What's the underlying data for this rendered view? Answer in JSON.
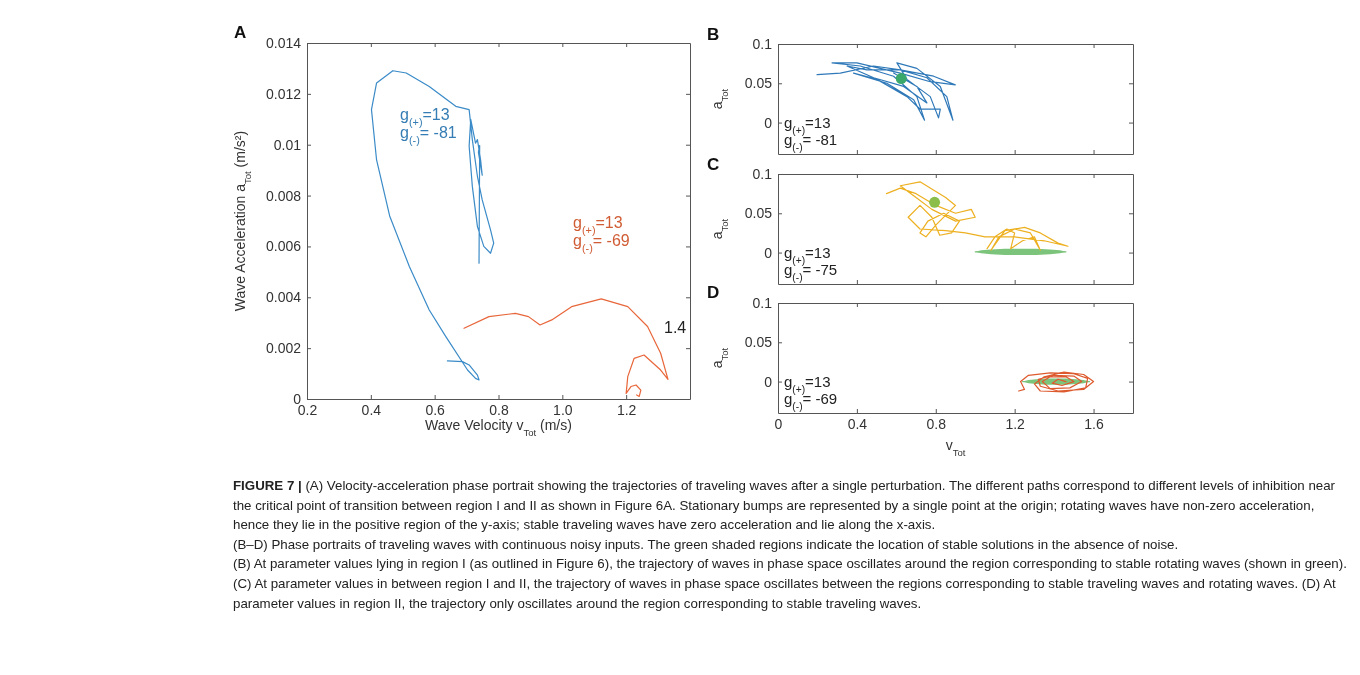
{
  "chart_data": [
    {
      "type": "line",
      "title": "A",
      "xlabel": "Wave Velocity v$_{Tot}$ (m/s)",
      "ylabel": "Wave Acceleration a$_{Tot}$ (m/s²)",
      "xlim": [
        0.2,
        1.4
      ],
      "xticks": [
        0.2,
        0.4,
        0.6,
        0.8,
        {
          "value": 1,
          "label": "1.0"
        },
        1.2
      ],
      "ylim": [
        0,
        0.014
      ],
      "yticks": [
        0,
        0.002,
        0.004,
        0.006,
        0.008,
        0.01,
        0.012,
        0.014
      ],
      "series": [
        {
          "name": "g$_{(+)}$=13\ng$_{(-)}$= -81",
          "color": "#3b8bc8",
          "x": [
            0.64,
            0.687,
            0.708,
            0.734,
            0.739,
            0.728,
            0.703,
            0.635,
            0.583,
            0.521,
            0.459,
            0.418,
            0.402,
            0.418,
            0.469,
            0.511,
            0.583,
            0.666,
            0.708,
            0.718,
            0.734,
            0.749,
            0.775,
            0.785,
            0.775,
            0.754,
            0.734,
            0.718,
            0.708,
            0.713,
            0.728,
            0.734,
            0.744,
            0.749,
            0.737,
            0.741,
            0.739
          ],
          "values": [
            0.0015,
            0.00147,
            0.00134,
            0.00094,
            0.00075,
            0.00081,
            0.00114,
            0.00245,
            0.0035,
            0.0052,
            0.0072,
            0.0094,
            0.01138,
            0.01243,
            0.01291,
            0.01282,
            0.01229,
            0.01151,
            0.01138,
            0.0102,
            0.00875,
            0.00783,
            0.00665,
            0.00613,
            0.00573,
            0.006,
            0.00678,
            0.00836,
            0.00995,
            0.011,
            0.01006,
            0.0102,
            0.0094,
            0.0088,
            0.00971,
            0.00997,
            0.00534
          ]
        },
        {
          "name": "g$_{(+)}$=13\ng$_{(-)}$= -69",
          "color": "#e8663a",
          "x": [
            0.692,
            0.77,
            0.853,
            0.894,
            0.93,
            0.967,
            1.029,
            1.122,
            1.205,
            1.267,
            1.308,
            1.331,
            1.308,
            1.256,
            1.225,
            1.205,
            1.2,
            1.215,
            1.231,
            1.246,
            1.241,
            1.233
          ],
          "values": [
            0.00278,
            0.00324,
            0.00337,
            0.00324,
            0.00291,
            0.00311,
            0.00363,
            0.00394,
            0.00363,
            0.00285,
            0.0018,
            0.00077,
            0.00114,
            0.00173,
            0.0016,
            0.00088,
            0.00022,
            0.00049,
            0.00055,
            0.00035,
            0.0001,
            0.00016
          ]
        }
      ],
      "annotations": [
        "1.4"
      ]
    },
    {
      "type": "line",
      "title": "B",
      "ylabel": "a$_{Tot}$",
      "tick_labels": "y",
      "xlim": [
        0,
        1.8
      ],
      "xticks": [
        0,
        0.4,
        0.8,
        1.2,
        1.6
      ],
      "ylim": [
        -0.04,
        0.1
      ],
      "yticks": [
        0,
        0.05,
        0.1
      ],
      "series": [
        {
          "color": "#2f79b9",
          "x": [
            0.198,
            0.316,
            0.485,
            0.62,
            0.789,
            0.899,
            0.772,
            0.62,
            0.4,
            0.274,
            0.417,
            0.586,
            0.704,
            0.743,
            0.688,
            0.552,
            0.383,
            0.502,
            0.654,
            0.721,
            0.823,
            0.814,
            0.772,
            0.654,
            0.603,
            0.704,
            0.823,
            0.887,
            0.856,
            0.755,
            0.62,
            0.451,
            0.35,
            0.485,
            0.637,
            0.755,
            0.704,
            0.586
          ],
          "values": [
            0.061,
            0.063,
            0.072,
            0.067,
            0.059,
            0.048,
            0.052,
            0.063,
            0.076,
            0.076,
            0.072,
            0.059,
            0.033,
            0.003,
            0.029,
            0.05,
            0.063,
            0.055,
            0.033,
            0.017,
            0.017,
            0.006,
            0.033,
            0.055,
            0.076,
            0.069,
            0.046,
            0.003,
            0.033,
            0.057,
            0.067,
            0.067,
            0.072,
            0.057,
            0.046,
            0.025,
            0.046,
            0.063
          ]
        },
        {
          "type": "scatter",
          "color": "#3aa86a",
          "x": [
            0.625
          ],
          "values": [
            0.056
          ]
        }
      ],
      "annotations": [
        "g$_{(+)}$=13\ng$_{(-)}$= -81"
      ]
    },
    {
      "type": "line",
      "title": "C",
      "ylabel": "a$_{Tot}$",
      "tick_labels": "y",
      "xlim": [
        0,
        1.8
      ],
      "xticks": [
        0,
        0.4,
        0.8,
        1.2,
        1.6
      ],
      "ylim": [
        -0.04,
        0.1
      ],
      "yticks": [
        0,
        0.05,
        0.1
      ],
      "series": [
        {
          "color": "#7cc47c",
          "x": [
            1.0,
            1.03,
            1.08,
            1.15,
            1.23,
            1.31,
            1.38,
            1.43,
            1.46
          ],
          "values": [
            0.001,
            0.001,
            0.001,
            0.001,
            0.001,
            0.001,
            0.001,
            0.001,
            0.001
          ],
          "upper": [
            0.001,
            0.003,
            0.004,
            0.005,
            0.005,
            0.005,
            0.004,
            0.003,
            0.001
          ],
          "lower": [
            0.001,
            -0.001,
            -0.002,
            -0.003,
            -0.003,
            -0.003,
            -0.002,
            -0.001,
            0.001
          ]
        },
        {
          "color": "#edb021",
          "x": [
            0.55,
            0.62,
            0.7,
            0.8,
            0.9,
            0.98,
            1.0,
            0.9,
            0.78,
            0.7,
            0.62,
            0.72,
            0.85,
            0.9,
            0.8,
            0.75,
            0.72,
            0.76,
            0.84,
            0.92,
            0.88,
            0.82,
            0.78,
            0.72,
            0.66,
            0.72,
            0.85,
            0.95,
            1.05,
            1.2,
            1.35,
            1.47,
            1.42,
            1.33,
            1.25,
            1.15,
            1.08,
            1.12,
            1.2,
            1.28,
            1.33,
            1.3,
            1.24,
            1.18,
            1.2,
            1.16,
            1.1,
            1.06
          ],
          "values": [
            0.075,
            0.082,
            0.075,
            0.06,
            0.05,
            0.055,
            0.045,
            0.04,
            0.055,
            0.07,
            0.085,
            0.09,
            0.07,
            0.06,
            0.035,
            0.02,
            0.025,
            0.04,
            0.05,
            0.04,
            0.025,
            0.022,
            0.045,
            0.06,
            0.045,
            0.03,
            0.028,
            0.025,
            0.02,
            0.02,
            0.015,
            0.008,
            0.012,
            0.025,
            0.032,
            0.028,
            0.003,
            0.02,
            0.03,
            0.025,
            0.003,
            0.02,
            0.015,
            0.005,
            0.025,
            0.03,
            0.02,
            0.005
          ]
        },
        {
          "type": "scatter",
          "color": "#8bbd4a",
          "x": [
            0.794
          ],
          "values": [
            0.064
          ]
        }
      ],
      "annotations": [
        "g$_{(+)}$=13\ng$_{(-)}$= -75"
      ]
    },
    {
      "type": "line",
      "title": "D",
      "xlabel": "v$_{Tot}$",
      "ylabel": "a$_{Tot}$",
      "xlim": [
        0,
        1.8
      ],
      "xticks": [
        0,
        0.4,
        0.8,
        1.2,
        1.6
      ],
      "ylim": [
        -0.04,
        0.1
      ],
      "yticks": [
        0,
        0.05,
        0.1
      ],
      "series": [
        {
          "color": "#7cc47c",
          "x": [
            1.24,
            1.27,
            1.31,
            1.36,
            1.41,
            1.46,
            1.51,
            1.55,
            1.58
          ],
          "values": [
            0,
            0,
            0,
            0,
            0,
            0,
            0,
            0,
            0
          ],
          "upper": [
            0,
            0.002,
            0.003,
            0.004,
            0.004,
            0.004,
            0.003,
            0.002,
            0
          ],
          "lower": [
            0,
            -0.002,
            -0.003,
            -0.004,
            -0.004,
            -0.004,
            -0.003,
            -0.002,
            0
          ]
        },
        {
          "color": "#dd5a2e",
          "x": [
            1.22,
            1.25,
            1.23,
            1.27,
            1.38,
            1.5,
            1.57,
            1.56,
            1.45,
            1.33,
            1.3,
            1.35,
            1.45,
            1.55,
            1.6,
            1.55,
            1.42,
            1.33,
            1.32,
            1.4,
            1.5,
            1.54,
            1.48,
            1.38,
            1.34,
            1.38,
            1.46,
            1.5,
            1.44,
            1.39,
            1.42,
            1.46
          ],
          "values": [
            -0.012,
            -0.01,
            0,
            0.008,
            0.011,
            0.01,
            0.004,
            -0.008,
            -0.013,
            -0.012,
            -0.003,
            0.006,
            0.012,
            0.009,
            0,
            -0.01,
            -0.012,
            -0.006,
            0.003,
            0.008,
            0.007,
            0,
            -0.008,
            -0.009,
            0,
            0.006,
            0.006,
            0,
            -0.005,
            -0.002,
            0.003,
            0
          ]
        }
      ],
      "annotations": [
        "g$_{(+)}$=13\ng$_{(-)}$= -69"
      ]
    },
    {
      "type": "other",
      "title": "FIGURE 7 |",
      "annotations": [
        "(A) Velocity-acceleration phase portrait showing the trajectories of traveling waves after a single perturbation. The different paths correspond to different levels of inhibition near the critical point of transition between region I and II as shown in Figure 6A. Stationary bumps are represented by a single point at the origin; rotating waves have non-zero acceleration, hence they lie in the positive region of the y-axis; stable traveling waves have zero acceleration and lie along the x-axis.",
        "(B–D) Phase portraits of traveling waves with continuous noisy inputs. The green shaded regions indicate the location of stable solutions in the absence of noise.",
        "(B) At parameter values lying in region I (as outlined in Figure 6), the trajectory of waves in phase space oscillates around the region corresponding to stable rotating waves (shown in green). (C) At parameter values in between region I and II, the trajectory of waves in phase space oscillates between the regions corresponding to stable traveling waves and rotating waves. (D) At parameter values in region II, the trajectory only oscillates around the region corresponding to stable traveling waves."
      ]
    }
  ]
}
